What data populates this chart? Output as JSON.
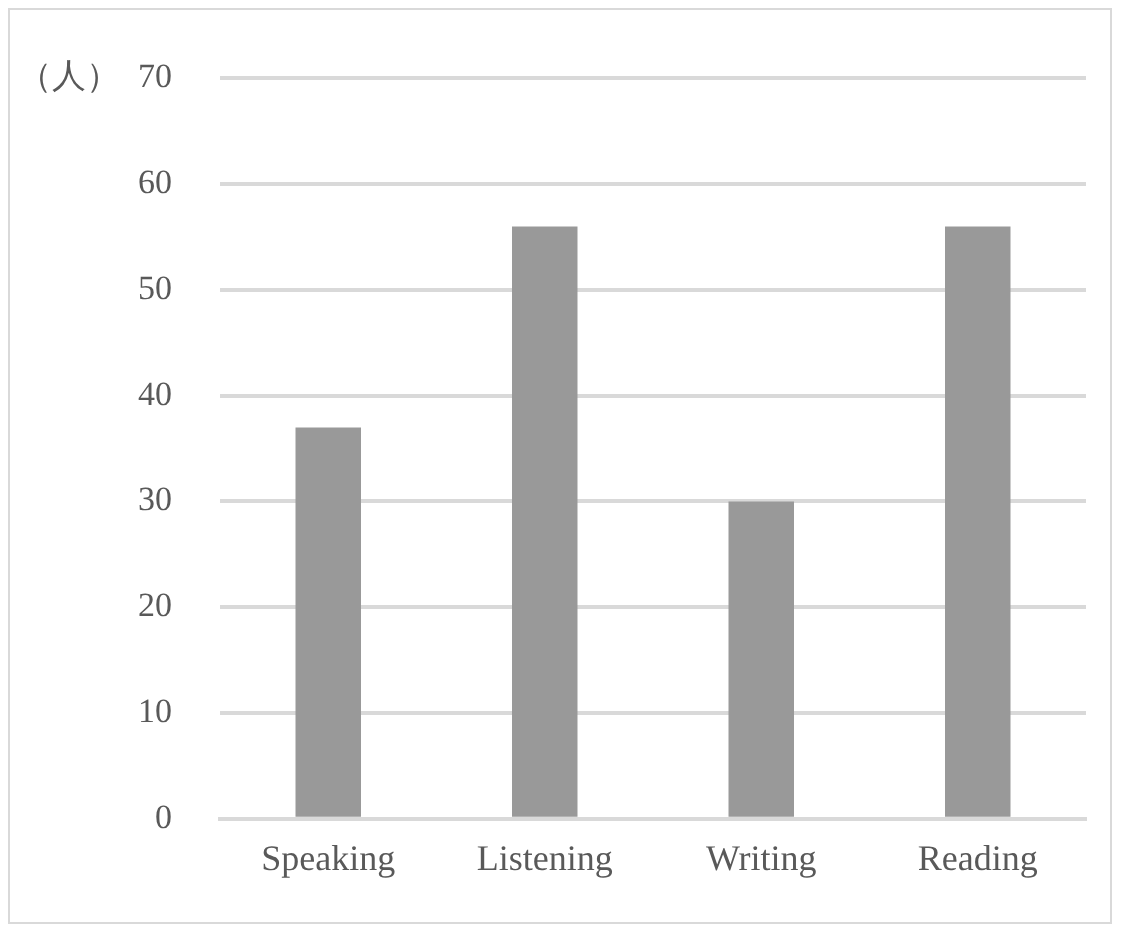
{
  "chart_data": {
    "type": "bar",
    "ylabel": "（人）",
    "categories": [
      "Speaking",
      "Listening",
      "Writing",
      "Reading"
    ],
    "values": [
      37,
      56,
      30,
      56
    ],
    "color": "#999999",
    "ylim": [
      0,
      70
    ],
    "yticks": [
      0,
      10,
      20,
      30,
      40,
      50,
      60,
      70
    ],
    "grid": "y",
    "legend": false
  }
}
